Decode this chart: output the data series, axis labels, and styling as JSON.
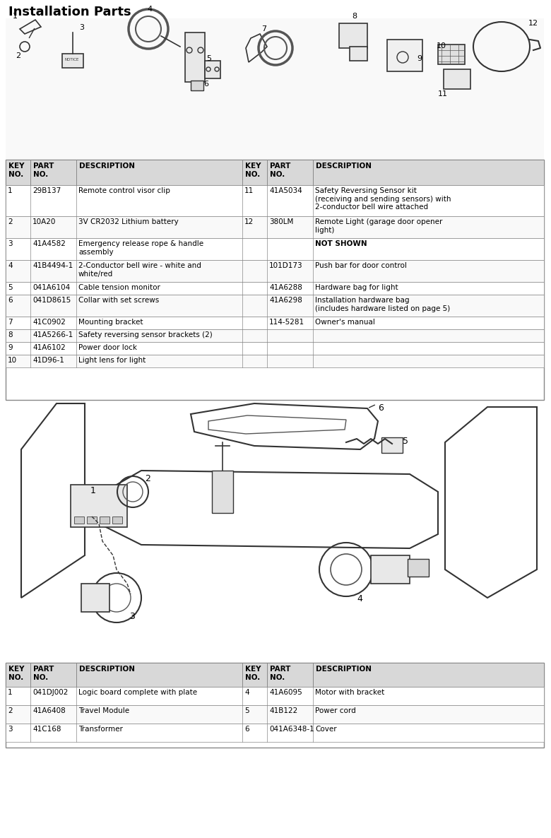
{
  "title": "Installation Parts",
  "bg_color": "#ffffff",
  "table1_header": [
    [
      "KEY\nNO.",
      "PART\nNO.",
      "DESCRIPTION",
      "KEY\nNO.",
      "PART\nNO.",
      "DESCRIPTION"
    ]
  ],
  "table1_rows": [
    [
      "1",
      "29B137",
      "Remote control visor clip",
      "11",
      "41A5034",
      "Safety Reversing Sensor kit\n(receiving and sending sensors) with\n2-conductor bell wire attached"
    ],
    [
      "2",
      "10A20",
      "3V CR2032 Lithium battery",
      "12",
      "380LM",
      "Remote Light (garage door opener\nlight)"
    ],
    [
      "3",
      "41A4582",
      "Emergency release rope & handle\nassembly",
      "",
      "",
      "NOT SHOWN"
    ],
    [
      "4",
      "41B4494-1",
      "2-Conductor bell wire - white and\nwhite/red",
      "",
      "101D173",
      "Push bar for door control"
    ],
    [
      "5",
      "041A6104",
      "Cable tension monitor",
      "",
      "41A6288",
      "Hardware bag for light"
    ],
    [
      "6",
      "041D8615",
      "Collar with set screws",
      "",
      "41A6298",
      "Installation hardware bag\n(includes hardware listed on page 5)"
    ],
    [
      "7",
      "41C0902",
      "Mounting bracket",
      "",
      "114-5281",
      "Owner's manual"
    ],
    [
      "8",
      "41A5266-1",
      "Safety reversing sensor brackets (2)",
      "",
      "",
      ""
    ],
    [
      "9",
      "41A6102",
      "Power door lock",
      "",
      "",
      ""
    ],
    [
      "10",
      "41D96-1",
      "Light lens for light",
      "",
      "",
      ""
    ]
  ],
  "table2_header": [
    [
      "KEY\nNO.",
      "PART\nNO.",
      "DESCRIPTION",
      "KEY\nNO.",
      "PART\nNO.",
      "DESCRIPTION"
    ]
  ],
  "table2_rows": [
    [
      "1",
      "041DJ002",
      "Logic board complete with plate",
      "4",
      "41A6095",
      "Motor with bracket"
    ],
    [
      "2",
      "41A6408",
      "Travel Module",
      "5",
      "41B122",
      "Power cord"
    ],
    [
      "3",
      "41C168",
      "Transformer",
      "6",
      "041A6348-1",
      "Cover"
    ]
  ],
  "border_color": "#888888",
  "header_bg": "#d8d8d8",
  "row_bg_even": "#ffffff",
  "row_bg_odd": "#ffffff",
  "text_color": "#000000",
  "title_fontsize": 13,
  "table_fontsize": 7.5,
  "not_shown_fontsize": 8
}
